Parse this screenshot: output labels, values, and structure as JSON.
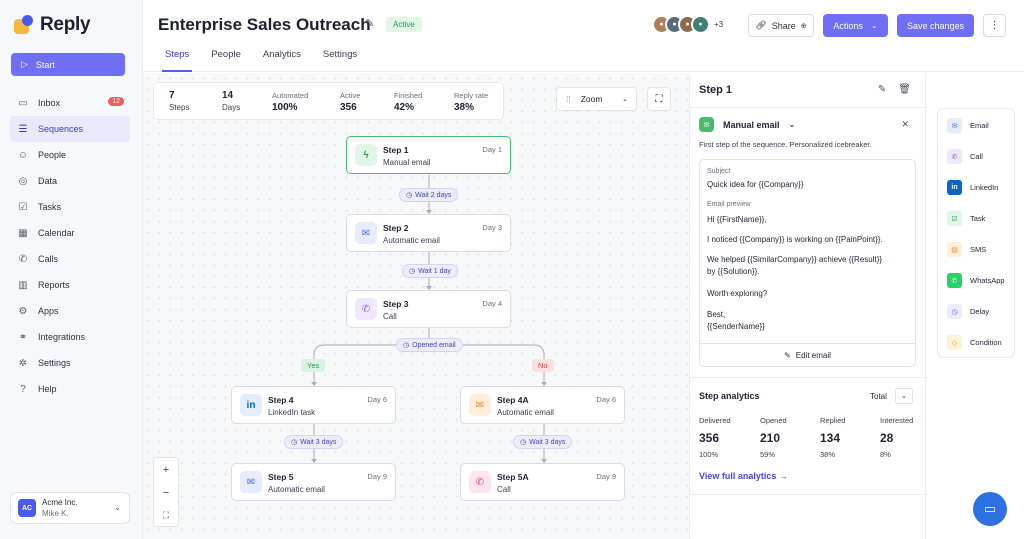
{
  "app": {
    "name": "Reply"
  },
  "sidebar": {
    "start_label": "Start",
    "items": [
      {
        "label": "Inbox",
        "icon": "inbox-icon",
        "badge": "12"
      },
      {
        "label": "Sequences",
        "icon": "sequences-icon",
        "active": true
      },
      {
        "label": "People",
        "icon": "people-icon"
      },
      {
        "label": "Data",
        "icon": "data-icon"
      },
      {
        "label": "Tasks",
        "icon": "tasks-icon"
      },
      {
        "label": "Calendar",
        "icon": "calendar-icon"
      },
      {
        "label": "Calls",
        "icon": "phone-icon"
      },
      {
        "label": "Reports",
        "icon": "reports-icon"
      },
      {
        "label": "Apps",
        "icon": "apps-icon"
      },
      {
        "label": "Integrations",
        "icon": "integrations-icon"
      },
      {
        "label": "Settings",
        "icon": "gear-icon"
      },
      {
        "label": "Help",
        "icon": "help-icon"
      }
    ],
    "account": {
      "initials": "AC",
      "name": "Acme Inc.",
      "user": "Mike K."
    }
  },
  "header": {
    "title": "Enterprise Sales Outreach",
    "status": "Active",
    "avatars_more": "+3",
    "share_label": "Share",
    "actions_label": "Actions",
    "save_label": "Save changes",
    "tabs": [
      "Steps",
      "People",
      "Analytics",
      "Settings"
    ]
  },
  "stats": {
    "steps": {
      "value": "7",
      "label": "Steps"
    },
    "days": {
      "value": "14",
      "label": "Days"
    },
    "automated": {
      "label": "Automated",
      "value": "100%"
    },
    "active": {
      "label": "Active",
      "value": "356"
    },
    "finished": {
      "label": "Finished",
      "value": "42%"
    },
    "reply_rate": {
      "label": "Reply rate",
      "value": "38%"
    }
  },
  "zoom_label": "Zoom",
  "flow": {
    "step1": {
      "title": "Step 1",
      "subtitle": "Manual email",
      "day": "Day 1"
    },
    "wait1": "Wait 2 days",
    "step2": {
      "title": "Step 2",
      "subtitle": "Automatic email",
      "day": "Day 3"
    },
    "wait2": "Wait 1 day",
    "step3": {
      "title": "Step 3",
      "subtitle": "Call",
      "day": "Day 4"
    },
    "condition": "Opened email",
    "yes": "Yes",
    "no": "No",
    "step4": {
      "title": "Step 4",
      "subtitle": "LinkedIn task",
      "day": "Day 6"
    },
    "step4a": {
      "title": "Step 4A",
      "subtitle": "Automatic email",
      "day": "Day 6"
    },
    "wait3": "Wait 3 days",
    "wait4": "Wait 3 days",
    "step5": {
      "title": "Step 5",
      "subtitle": "Automatic email",
      "day": "Day 9"
    },
    "step5a": {
      "title": "Step 5A",
      "subtitle": "Call",
      "day": "Day 9"
    }
  },
  "panel": {
    "title": "Step 1",
    "type": "Manual email",
    "description": "First step of the sequence. Personalized icebreaker.",
    "subject_label": "Subject",
    "subject": "Quick idea for {{Company}}",
    "preview_label": "Email preview",
    "lines": [
      "Hi {{FirstName}},",
      "I noticed {{Company}} is working on {{PainPoint}}.",
      "We helped {{SimilarCompany}} achieve {{Result}}",
      "by {{Solution}}.",
      "Worth exploring?",
      "Best,",
      "{{SenderName}}"
    ],
    "edit_label": "Edit email",
    "analytics": {
      "title": "Step analytics",
      "filter": "Total",
      "cols": [
        {
          "label": "Delivered",
          "num": "356",
          "pct": "100%"
        },
        {
          "label": "Opened",
          "num": "210",
          "pct": "59%"
        },
        {
          "label": "Replied",
          "num": "134",
          "pct": "38%"
        },
        {
          "label": "Interested",
          "num": "28",
          "pct": "8%"
        }
      ],
      "link": "View full analytics"
    }
  },
  "palette": [
    {
      "label": "Email",
      "icon": "email-icon",
      "color": "#4a6cf0",
      "bg": "#e7ecfd"
    },
    {
      "label": "Call",
      "icon": "phone-icon",
      "color": "#8a5cf0",
      "bg": "#efe8fd"
    },
    {
      "label": "LinkedIn",
      "icon": "linkedin-icon",
      "color": "#ffffff",
      "bg": "#0a66c2"
    },
    {
      "label": "Task",
      "icon": "task-icon",
      "color": "#2e9e55",
      "bg": "#e3f5e9"
    },
    {
      "label": "SMS",
      "icon": "sms-icon",
      "color": "#f08a24",
      "bg": "#fdeedd"
    },
    {
      "label": "WhatsApp",
      "icon": "whatsapp-icon",
      "color": "#ffffff",
      "bg": "#25d366"
    },
    {
      "label": "Delay",
      "icon": "clock-icon",
      "color": "#5b5df0",
      "bg": "#ececfb"
    },
    {
      "label": "Condition",
      "icon": "condition-icon",
      "color": "#e6a100",
      "bg": "#fdf3d9"
    }
  ]
}
